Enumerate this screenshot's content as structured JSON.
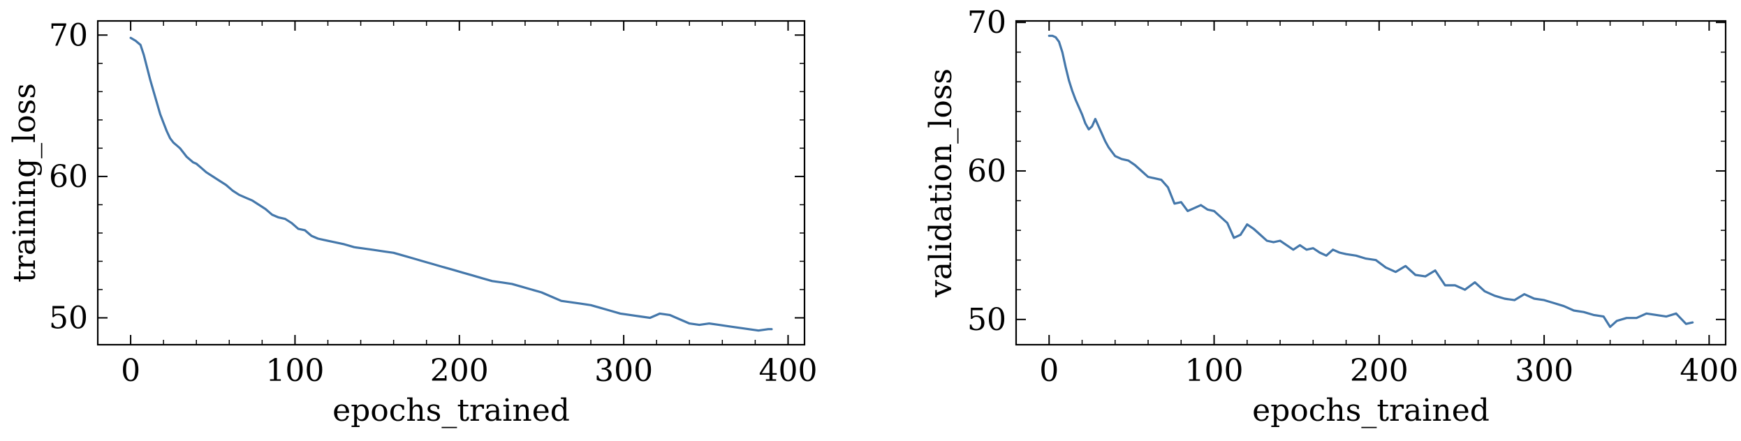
{
  "chart_data": [
    {
      "type": "line",
      "xlabel": "epochs_trained",
      "ylabel": "training_loss",
      "xlim": [
        -20,
        410
      ],
      "ylim": [
        48.1,
        71
      ],
      "xticks": [
        0,
        100,
        200,
        300,
        400
      ],
      "xtick_labels": [
        "0",
        "100",
        "200",
        "300",
        "400"
      ],
      "yticks": [
        50,
        60,
        70
      ],
      "ytick_labels": [
        "50",
        "60",
        "70"
      ],
      "grid": false,
      "line_color": "#4477aa",
      "series": [
        {
          "x": [
            0,
            3,
            6,
            8,
            10,
            12,
            14,
            16,
            18,
            20,
            22,
            24,
            26,
            28,
            30,
            32,
            34,
            36,
            38,
            40,
            43,
            46,
            50,
            54,
            58,
            62,
            66,
            70,
            74,
            78,
            82,
            86,
            90,
            94,
            98,
            102,
            106,
            110,
            114,
            118,
            122,
            126,
            130,
            136,
            142,
            148,
            154,
            160,
            166,
            172,
            178,
            184,
            190,
            196,
            202,
            208,
            214,
            220,
            226,
            232,
            238,
            244,
            250,
            256,
            262,
            268,
            274,
            280,
            286,
            292,
            298,
            304,
            310,
            316,
            322,
            328,
            334,
            340,
            346,
            352,
            358,
            364,
            370,
            376,
            382,
            388,
            390
          ],
          "y": [
            69.8,
            69.6,
            69.3,
            68.6,
            67.7,
            66.8,
            66.0,
            65.2,
            64.4,
            63.8,
            63.2,
            62.7,
            62.4,
            62.2,
            62.0,
            61.7,
            61.4,
            61.2,
            61.0,
            60.9,
            60.6,
            60.3,
            60.0,
            59.7,
            59.4,
            59.0,
            58.7,
            58.5,
            58.3,
            58.0,
            57.7,
            57.3,
            57.1,
            57.0,
            56.7,
            56.3,
            56.2,
            55.8,
            55.6,
            55.5,
            55.4,
            55.3,
            55.2,
            55.0,
            54.9,
            54.8,
            54.7,
            54.6,
            54.4,
            54.2,
            54.0,
            53.8,
            53.6,
            53.4,
            53.2,
            53.0,
            52.8,
            52.6,
            52.5,
            52.4,
            52.2,
            52.0,
            51.8,
            51.5,
            51.2,
            51.1,
            51.0,
            50.9,
            50.7,
            50.5,
            50.3,
            50.2,
            50.1,
            50.0,
            50.3,
            50.2,
            49.9,
            49.6,
            49.5,
            49.6,
            49.5,
            49.4,
            49.3,
            49.2,
            49.1,
            49.2,
            49.2
          ]
        }
      ]
    },
    {
      "type": "line",
      "xlabel": "epochs_trained",
      "ylabel": "validation_loss",
      "xlim": [
        -20,
        410
      ],
      "ylim": [
        48.3,
        70.1
      ],
      "xticks": [
        0,
        100,
        200,
        300,
        400
      ],
      "xtick_labels": [
        "0",
        "100",
        "200",
        "300",
        "400"
      ],
      "yticks": [
        50,
        60,
        70
      ],
      "ytick_labels": [
        "50",
        "60",
        "70"
      ],
      "grid": false,
      "line_color": "#4477aa",
      "series": [
        {
          "x": [
            0,
            2,
            4,
            6,
            8,
            10,
            12,
            14,
            16,
            18,
            20,
            22,
            24,
            26,
            28,
            30,
            32,
            34,
            36,
            38,
            40,
            44,
            48,
            52,
            56,
            60,
            64,
            68,
            72,
            76,
            80,
            84,
            88,
            92,
            96,
            100,
            104,
            108,
            112,
            116,
            120,
            124,
            128,
            132,
            136,
            140,
            144,
            148,
            152,
            156,
            160,
            164,
            168,
            172,
            176,
            180,
            186,
            192,
            198,
            204,
            210,
            216,
            222,
            228,
            234,
            240,
            246,
            252,
            258,
            264,
            270,
            276,
            282,
            288,
            294,
            300,
            306,
            312,
            318,
            324,
            330,
            336,
            340,
            344,
            350,
            356,
            362,
            368,
            374,
            380,
            386,
            390
          ],
          "y": [
            69.1,
            69.1,
            69.0,
            68.7,
            68.0,
            67.0,
            66.1,
            65.4,
            64.8,
            64.3,
            63.8,
            63.2,
            62.8,
            63.0,
            63.5,
            63.0,
            62.5,
            62.0,
            61.6,
            61.3,
            61.0,
            60.8,
            60.7,
            60.4,
            60.0,
            59.6,
            59.5,
            59.4,
            58.9,
            57.8,
            57.9,
            57.3,
            57.5,
            57.7,
            57.4,
            57.3,
            56.9,
            56.5,
            55.5,
            55.7,
            56.4,
            56.1,
            55.7,
            55.3,
            55.2,
            55.3,
            55.0,
            54.7,
            55.0,
            54.7,
            54.8,
            54.5,
            54.3,
            54.7,
            54.5,
            54.4,
            54.3,
            54.1,
            54.0,
            53.5,
            53.2,
            53.6,
            53.0,
            52.9,
            53.3,
            52.3,
            52.3,
            52.0,
            52.5,
            51.9,
            51.6,
            51.4,
            51.3,
            51.7,
            51.4,
            51.3,
            51.1,
            50.9,
            50.6,
            50.5,
            50.3,
            50.2,
            49.5,
            49.9,
            50.1,
            50.1,
            50.4,
            50.3,
            50.2,
            50.4,
            49.7,
            49.8
          ]
        }
      ]
    }
  ]
}
